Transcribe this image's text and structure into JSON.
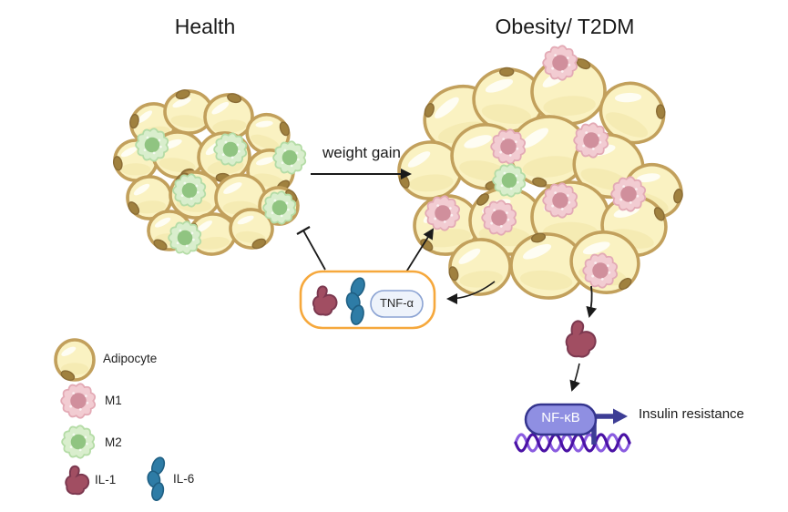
{
  "titles": {
    "left": "Health",
    "right": "Obesity/ T2DM"
  },
  "labels": {
    "weight_gain": "weight gain",
    "tnf": "TNF-α",
    "nfkb": "NF-κB",
    "insulin_resistance": "Insulin resistance"
  },
  "legend": {
    "items": [
      {
        "icon": "adipocyte",
        "label": "Adipocyte"
      },
      {
        "icon": "m1-macrophage",
        "label": "M1"
      },
      {
        "icon": "m2-macrophage",
        "label": "M2"
      },
      {
        "icon": "il-1",
        "label": "IL-1"
      },
      {
        "icon": "il-6",
        "label": "IL-6"
      }
    ]
  },
  "colors": {
    "adipocyte_fill": "#faf2c2",
    "adipocyte_border": "#c2a05c",
    "adipocyte_nucleus": "#a0813f",
    "adipocyte_nucleus_edge": "#8a6c35",
    "m1_fill": "#f2ccd2",
    "m1_border": "#e3aab5",
    "m1_nucleus": "#d08f9c",
    "m2_fill": "#d9eecd",
    "m2_border": "#b4dca6",
    "m2_nucleus": "#90c481",
    "il1": "#a14e62",
    "il1_border": "#7c3950",
    "il6": "#2e7ca6",
    "il6_border": "#1f5f83",
    "box_border": "#f6a83c",
    "box_fill": "#ffffff",
    "tnf_fill": "#eef3fb",
    "tnf_border": "#8ba3d3",
    "nfkb_fill": "#8f8fe2",
    "nfkb_border": "#34348e",
    "transcription_arrow": "#3d3d95",
    "dna_dark": "#4a12a5",
    "dna_light": "#8a5ce0",
    "arrow": "#1a1a1a"
  }
}
